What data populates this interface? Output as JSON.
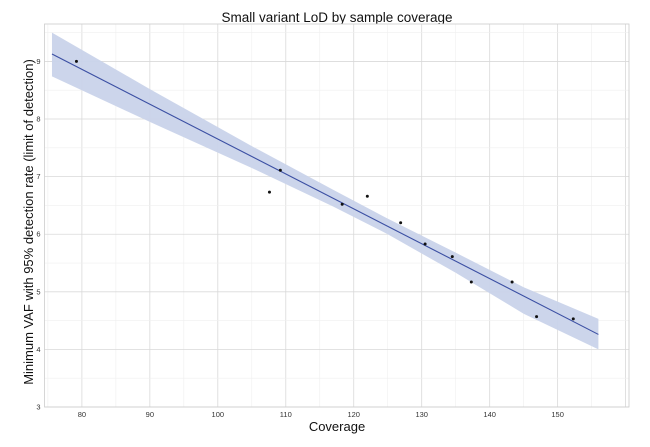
{
  "chart_data": {
    "type": "scatter",
    "title": "Small variant LoD by sample coverage",
    "xlabel": "Coverage",
    "ylabel": "Minimum VAF with 95% detection rate (limit of detection)",
    "xlim": [
      74.5,
      160.5
    ],
    "ylim": [
      3,
      9.65
    ],
    "xticks": [
      80,
      90,
      100,
      110,
      120,
      130,
      140,
      150
    ],
    "yticks": [
      3,
      4,
      5,
      6,
      7,
      8,
      9
    ],
    "grid": true,
    "legend": "none",
    "colors": {
      "points": "#111111",
      "fit_line": "#3b4fa3",
      "confidence_band": "#c9d3ea"
    },
    "points": [
      {
        "x": 79.2,
        "y": 9.0
      },
      {
        "x": 107.6,
        "y": 6.73
      },
      {
        "x": 109.2,
        "y": 7.11
      },
      {
        "x": 118.3,
        "y": 6.52
      },
      {
        "x": 122.0,
        "y": 6.66
      },
      {
        "x": 126.9,
        "y": 6.2
      },
      {
        "x": 130.5,
        "y": 5.83
      },
      {
        "x": 134.5,
        "y": 5.61
      },
      {
        "x": 137.3,
        "y": 5.17
      },
      {
        "x": 143.3,
        "y": 5.17
      },
      {
        "x": 146.9,
        "y": 4.57
      },
      {
        "x": 152.3,
        "y": 4.53
      }
    ],
    "fit_line": {
      "x": [
        75.6,
        156.0
      ],
      "y": [
        9.13,
        4.26
      ]
    },
    "confidence_band": {
      "x": [
        75.6,
        90.0,
        105.0,
        117.0,
        125.0,
        135.0,
        145.0,
        156.0
      ],
      "upper": [
        9.5,
        8.52,
        7.53,
        6.77,
        6.27,
        5.68,
        5.08,
        4.53
      ],
      "lower": [
        8.74,
        7.95,
        7.15,
        6.48,
        6.0,
        5.33,
        4.62,
        4.0
      ]
    }
  }
}
